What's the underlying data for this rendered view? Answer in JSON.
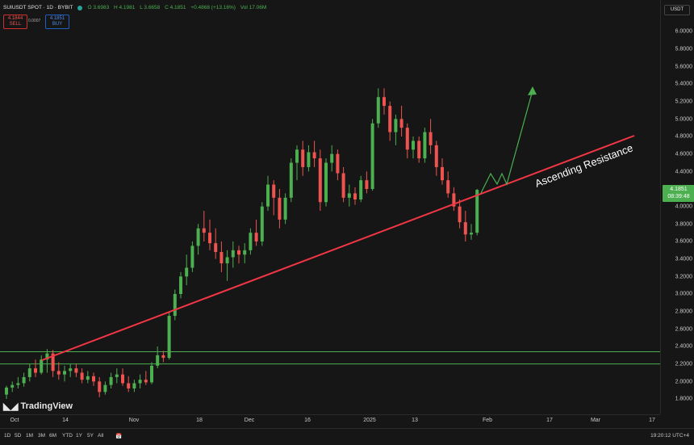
{
  "header": {
    "symbol": "SUIUSDT SPOT · 1D · BYBIT",
    "open": "O 3.6983",
    "high": "H 4.1981",
    "low": "L 3.6658",
    "close": "C 4.1851",
    "change": "+0.4868 (+13.16%)",
    "volume": "Vol 17.06M",
    "sell_price": "4.1844",
    "sell_label": "SELL",
    "spread": "0.0007",
    "buy_price": "4.1851",
    "buy_label": "BUY",
    "status_color": "#26a69a"
  },
  "price_axis": {
    "currency": "USDT",
    "labels": [
      "6.0000",
      "5.8000",
      "5.6000",
      "5.4000",
      "5.2000",
      "5.0000",
      "4.8000",
      "4.6000",
      "4.4000",
      "4.0000",
      "3.8000",
      "3.6000",
      "3.4000",
      "3.2000",
      "3.0000",
      "2.8000",
      "2.6000",
      "2.4000",
      "2.2000",
      "2.0000",
      "1.8000"
    ],
    "current_price": "4.1851",
    "countdown": "08:39:48",
    "current_color": "#4caf50"
  },
  "time_axis": {
    "labels": [
      "Oct",
      "14",
      "Nov",
      "18",
      "Dec",
      "16",
      "2025",
      "13",
      "Feb",
      "17",
      "Mar",
      "17"
    ]
  },
  "chart_data": {
    "type": "candlestick",
    "ylim": [
      1.6,
      6.1
    ],
    "up_color": "#4caf50",
    "down_color": "#ef5350",
    "candles": [
      [
        1.85,
        1.95,
        1.8,
        1.93
      ],
      [
        1.93,
        2.0,
        1.88,
        1.96
      ],
      [
        1.96,
        2.05,
        1.92,
        1.98
      ],
      [
        1.98,
        2.1,
        1.94,
        2.05
      ],
      [
        2.05,
        2.2,
        2.0,
        2.15
      ],
      [
        2.15,
        2.25,
        2.05,
        2.1
      ],
      [
        2.1,
        2.3,
        2.08,
        2.25
      ],
      [
        2.25,
        2.37,
        2.1,
        2.32
      ],
      [
        2.32,
        2.36,
        2.05,
        2.12
      ],
      [
        2.12,
        2.22,
        2.02,
        2.08
      ],
      [
        2.08,
        2.18,
        2.0,
        2.12
      ],
      [
        2.12,
        2.2,
        2.05,
        2.15
      ],
      [
        2.15,
        2.2,
        2.05,
        2.1
      ],
      [
        2.1,
        2.15,
        1.98,
        2.02
      ],
      [
        2.02,
        2.12,
        1.98,
        2.06
      ],
      [
        2.06,
        2.1,
        1.95,
        2.0
      ],
      [
        2.0,
        2.05,
        1.82,
        1.88
      ],
      [
        1.88,
        2.0,
        1.85,
        1.96
      ],
      [
        1.96,
        2.1,
        1.92,
        2.05
      ],
      [
        2.05,
        2.15,
        1.98,
        2.08
      ],
      [
        2.08,
        2.15,
        1.95,
        1.98
      ],
      [
        1.98,
        2.06,
        1.88,
        1.92
      ],
      [
        1.92,
        2.02,
        1.88,
        1.98
      ],
      [
        1.98,
        2.08,
        1.92,
        2.02
      ],
      [
        2.02,
        2.12,
        1.96,
        1.99
      ],
      [
        1.99,
        2.22,
        1.97,
        2.18
      ],
      [
        2.18,
        2.4,
        2.15,
        2.3
      ],
      [
        2.3,
        2.35,
        2.22,
        2.27
      ],
      [
        2.27,
        2.8,
        2.25,
        2.75
      ],
      [
        2.75,
        3.05,
        2.7,
        3.0
      ],
      [
        3.0,
        3.25,
        2.95,
        3.2
      ],
      [
        3.2,
        3.45,
        3.1,
        3.3
      ],
      [
        3.3,
        3.6,
        3.25,
        3.55
      ],
      [
        3.55,
        3.8,
        3.45,
        3.75
      ],
      [
        3.75,
        3.95,
        3.6,
        3.7
      ],
      [
        3.7,
        3.85,
        3.5,
        3.58
      ],
      [
        3.58,
        3.75,
        3.4,
        3.48
      ],
      [
        3.48,
        3.6,
        3.25,
        3.35
      ],
      [
        3.35,
        3.5,
        3.15,
        3.42
      ],
      [
        3.42,
        3.6,
        3.3,
        3.5
      ],
      [
        3.5,
        3.55,
        3.35,
        3.45
      ],
      [
        3.45,
        3.58,
        3.35,
        3.5
      ],
      [
        3.5,
        3.75,
        3.45,
        3.7
      ],
      [
        3.7,
        3.85,
        3.55,
        3.6
      ],
      [
        3.6,
        4.05,
        3.55,
        4.0
      ],
      [
        4.0,
        4.35,
        3.95,
        4.25
      ],
      [
        4.25,
        4.3,
        3.9,
        4.1
      ],
      [
        4.1,
        4.2,
        3.75,
        3.85
      ],
      [
        3.85,
        4.15,
        3.8,
        4.1
      ],
      [
        4.1,
        4.55,
        4.05,
        4.5
      ],
      [
        4.5,
        4.7,
        4.3,
        4.65
      ],
      [
        4.65,
        4.75,
        4.35,
        4.45
      ],
      [
        4.45,
        4.7,
        4.4,
        4.62
      ],
      [
        4.62,
        4.75,
        4.45,
        4.55
      ],
      [
        4.55,
        4.65,
        3.95,
        4.05
      ],
      [
        4.05,
        4.55,
        4.0,
        4.5
      ],
      [
        4.5,
        4.7,
        4.4,
        4.6
      ],
      [
        4.6,
        4.65,
        4.3,
        4.38
      ],
      [
        4.38,
        4.45,
        4.05,
        4.1
      ],
      [
        4.1,
        4.25,
        4.0,
        4.15
      ],
      [
        4.15,
        4.22,
        4.02,
        4.08
      ],
      [
        4.08,
        4.35,
        4.05,
        4.3
      ],
      [
        4.3,
        4.4,
        4.15,
        4.2
      ],
      [
        4.2,
        5.0,
        4.18,
        4.95
      ],
      [
        4.95,
        5.35,
        4.9,
        5.25
      ],
      [
        5.25,
        5.35,
        5.05,
        5.15
      ],
      [
        5.15,
        5.2,
        4.75,
        4.85
      ],
      [
        4.85,
        5.05,
        4.7,
        5.0
      ],
      [
        5.0,
        5.15,
        4.8,
        4.9
      ],
      [
        4.9,
        4.95,
        4.55,
        4.65
      ],
      [
        4.65,
        4.8,
        4.55,
        4.75
      ],
      [
        4.75,
        4.8,
        4.5,
        4.55
      ],
      [
        4.55,
        4.9,
        4.5,
        4.85
      ],
      [
        4.85,
        5.0,
        4.6,
        4.7
      ],
      [
        4.7,
        4.75,
        4.35,
        4.45
      ],
      [
        4.45,
        4.55,
        4.25,
        4.3
      ],
      [
        4.3,
        4.4,
        4.1,
        4.15
      ],
      [
        4.15,
        4.22,
        3.95,
        4.0
      ],
      [
        4.0,
        4.08,
        3.75,
        3.82
      ],
      [
        3.82,
        3.95,
        3.6,
        3.68
      ],
      [
        3.68,
        3.8,
        3.62,
        3.7
      ],
      [
        3.7,
        4.2,
        3.67,
        4.19
      ]
    ],
    "support_band": [
      2.2,
      2.34
    ],
    "trendline_label": "Ascending Resistance"
  },
  "bottom_bar": {
    "ranges": [
      "1D",
      "5D",
      "1M",
      "3M",
      "6M",
      "YTD",
      "1Y",
      "5Y",
      "All"
    ],
    "clock": "19:20:12 UTC+4"
  },
  "logo_text": "TradingView"
}
